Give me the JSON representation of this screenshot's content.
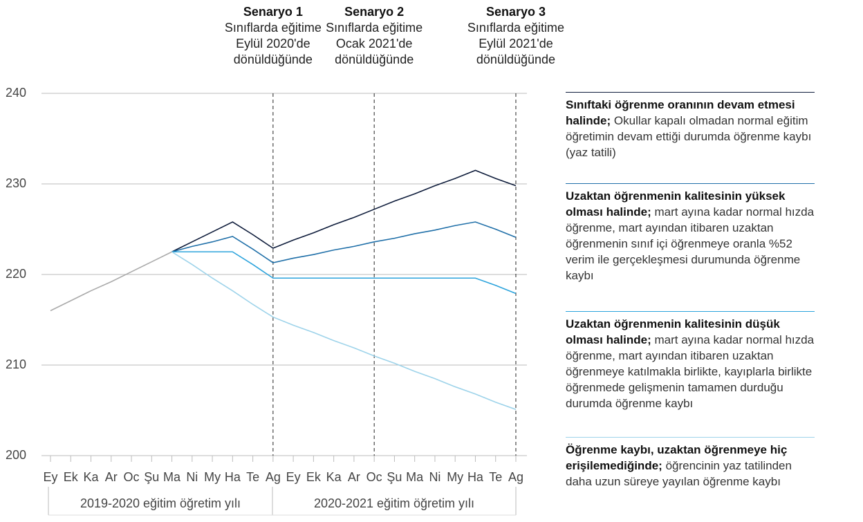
{
  "chart_data": {
    "type": "line",
    "categories": [
      "Ey",
      "Ek",
      "Ka",
      "Ar",
      "Oc",
      "Şu",
      "Ma",
      "Ni",
      "My",
      "Ha",
      "Te",
      "Ag",
      "Ey",
      "Ek",
      "Ka",
      "Ar",
      "Oc",
      "Şu",
      "Ma",
      "Ni",
      "My",
      "Ha",
      "Te",
      "Ag"
    ],
    "ylim": [
      200,
      240
    ],
    "yticks": [
      200,
      210,
      220,
      230,
      240
    ],
    "grid": true,
    "series": [
      {
        "color": "#aaaaaa",
        "values": [
          216,
          217.1,
          218.2,
          219.2,
          220.3,
          221.4,
          222.5,
          null,
          null,
          null,
          null,
          null,
          null,
          null,
          null,
          null,
          null,
          null,
          null,
          null,
          null,
          null,
          null,
          null
        ]
      },
      {
        "name": "Sınıftaki öğrenme oranının devam etmesi halinde;",
        "description": "Okullar kapalı olmadan normal eğitim öğretimin devam ettiği durumda öğrenme kaybı (yaz tatili)",
        "color": "#0d1b3a",
        "values": [
          null,
          null,
          null,
          null,
          null,
          null,
          222.5,
          223.6,
          224.7,
          225.8,
          224.4,
          222.9,
          223.8,
          224.6,
          225.5,
          226.3,
          227.2,
          228.1,
          228.9,
          229.8,
          230.6,
          231.5,
          230.6,
          229.8
        ]
      },
      {
        "name": "Uzaktan öğrenmenin kalitesinin yüksek olması halinde;",
        "description": "mart ayına kadar normal hızda öğrenme, mart ayından itibaren uzaktan öğrenmenin sınıf içi öğrenmeye oranla %52 verim ile gerçekleşmesi durumunda öğrenme kaybı",
        "color": "#1f6fa8",
        "values": [
          null,
          null,
          null,
          null,
          null,
          null,
          222.5,
          223.1,
          223.6,
          224.2,
          222.8,
          221.3,
          221.8,
          222.2,
          222.7,
          223.1,
          223.6,
          224.0,
          224.5,
          224.9,
          225.4,
          225.8,
          225.0,
          224.1
        ]
      },
      {
        "name": "Uzaktan öğrenmenin kalitesinin düşük olması halinde;",
        "description": "mart ayına kadar normal hızda öğrenme, mart ayından itibaren uzaktan öğrenmeye katılmakla birlikte, kayıplarla birlikte öğrenmede gelişmenin tamamen durduğu durumda öğrenme kaybı",
        "color": "#2ba3dc",
        "values": [
          null,
          null,
          null,
          null,
          null,
          null,
          222.5,
          222.5,
          222.5,
          222.5,
          221.1,
          219.6,
          219.6,
          219.6,
          219.6,
          219.6,
          219.6,
          219.6,
          219.6,
          219.6,
          219.6,
          219.6,
          218.8,
          217.9
        ]
      },
      {
        "name": "Öğrenme kaybı, uzaktan öğrenmeye hiç erişilemediğinde;",
        "description": "öğrencinin yaz tatilinden daha uzun süreye yayılan öğrenme kaybı",
        "color": "#9dd3ea",
        "values": [
          null,
          null,
          null,
          null,
          null,
          null,
          222.5,
          221.1,
          219.6,
          218.2,
          216.7,
          215.3,
          214.4,
          213.6,
          212.7,
          211.9,
          211.0,
          210.2,
          209.3,
          208.5,
          207.6,
          206.8,
          205.9,
          205.1
        ]
      }
    ],
    "annotations": [
      {
        "title": "Senaryo 1",
        "text": "Sınıflarda eğitime Eylül 2020'de dönüldüğünde"
      },
      {
        "title": "Senaryo 2",
        "text": "Sınıflarda eğitime Ocak 2021'de dönüldüğünde"
      },
      {
        "title": "Senaryo 3",
        "text": "Sınıflarda eğitime Eylül 2021'de dönüldüğünde"
      }
    ],
    "groups": [
      "2019-2020 eğitim öğretim yılı",
      "2020-2021 eğitim öğretim yılı"
    ]
  }
}
